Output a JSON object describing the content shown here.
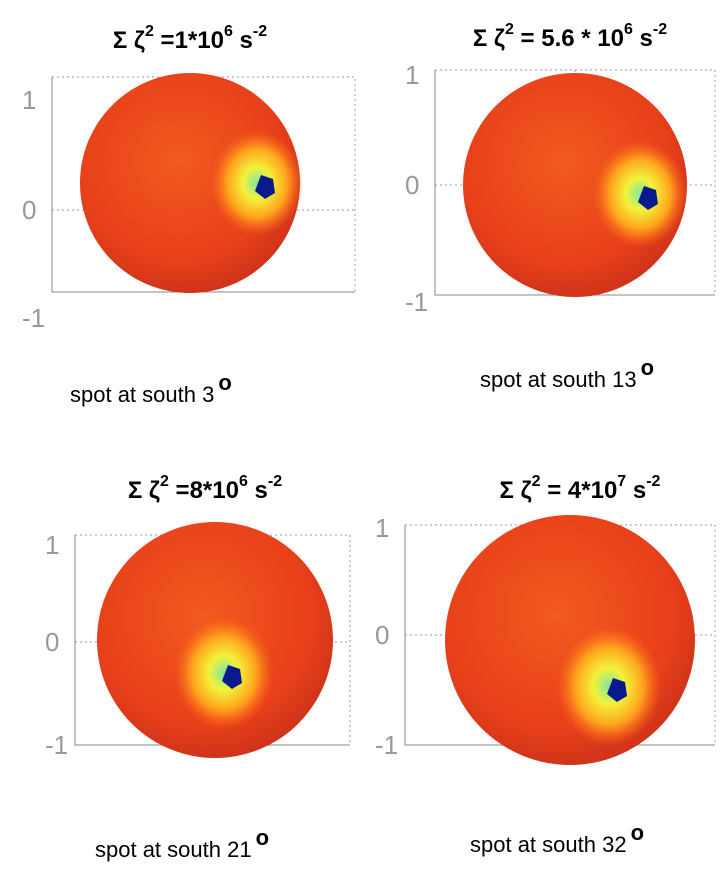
{
  "panels": [
    {
      "title": {
        "base": "Σ ζ",
        "exp": "2",
        "rest": " =1*10",
        "rest_exp": "6",
        "unit": " s",
        "unit_exp": "-2"
      },
      "ticks": [
        "1",
        "0",
        "-1"
      ],
      "caption": {
        "text": "spot at south 3",
        "exp": "o"
      }
    },
    {
      "title": {
        "base": "Σ ζ",
        "exp": "2",
        "rest": " = 5.6 * 10",
        "rest_exp": "6",
        "unit": " s",
        "unit_exp": "-2"
      },
      "ticks": [
        "1",
        "0",
        "-1"
      ],
      "caption": {
        "text": "spot at south 13",
        "exp": "o"
      }
    },
    {
      "title": {
        "base": "Σ ζ",
        "exp": "2",
        "rest": " =8*10",
        "rest_exp": "6",
        "unit": " s",
        "unit_exp": "-2"
      },
      "ticks": [
        "1",
        "0",
        "-1"
      ],
      "caption": {
        "text": "spot at south 21",
        "exp": "o"
      }
    },
    {
      "title": {
        "base": "Σ ζ",
        "exp": "2",
        "rest": " = 4*10",
        "rest_exp": "7",
        "unit": " s",
        "unit_exp": "-2"
      },
      "ticks": [
        "1",
        "0",
        "-1"
      ],
      "caption": {
        "text": "spot at south 32",
        "exp": "o"
      }
    }
  ]
}
